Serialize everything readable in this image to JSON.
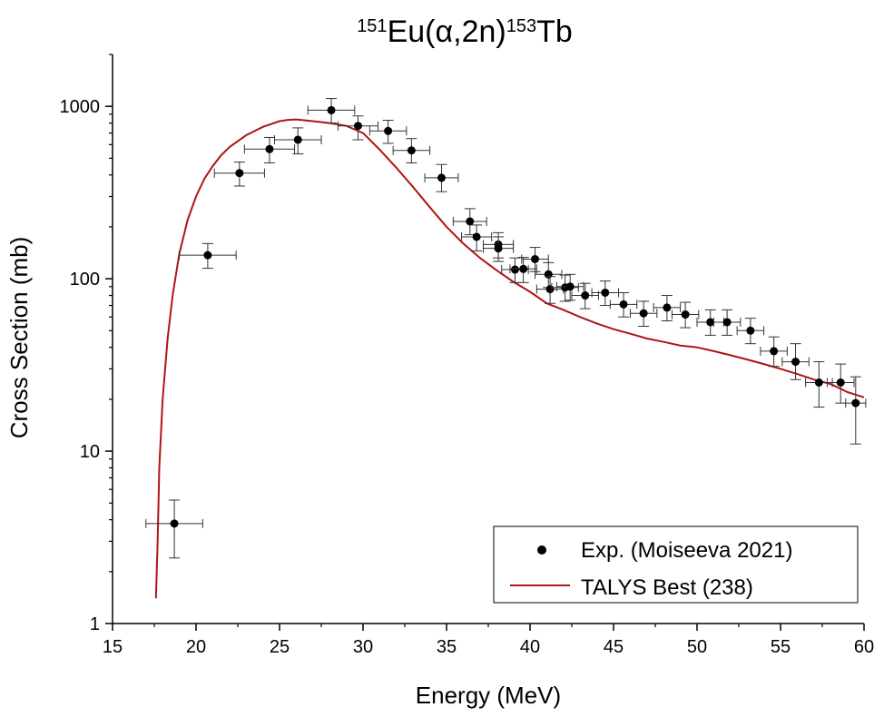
{
  "chart_data": {
    "type": "scatter",
    "title": {
      "parts": [
        {
          "text": "151",
          "sup": true
        },
        {
          "text": "Eu(",
          "sup": false
        },
        {
          "text": "α",
          "sup": false
        },
        {
          "text": ",2n)",
          "sup": false
        },
        {
          "text": "153",
          "sup": true
        },
        {
          "text": "Tb",
          "sup": false
        }
      ]
    },
    "xlabel": "Energy (MeV)",
    "ylabel": "Cross Section (mb)",
    "xlim": [
      15,
      60
    ],
    "ylim": [
      1,
      2000
    ],
    "yscale": "log",
    "x_ticks": [
      15,
      20,
      25,
      30,
      35,
      40,
      45,
      50,
      55,
      60
    ],
    "y_ticks": [
      {
        "value": 1,
        "label": "1"
      },
      {
        "value": 10,
        "label": "10"
      },
      {
        "value": 100,
        "label": "100"
      },
      {
        "value": 1000,
        "label": "1000"
      }
    ],
    "legend_position": "bottom-right",
    "series": [
      {
        "name": "Exp. (Moiseeva 2021)",
        "kind": "points_with_errorbars",
        "color": "#000000",
        "points": [
          {
            "x": 18.7,
            "y": 3.8,
            "xerr": 1.7,
            "ylo": 2.4,
            "yhi": 5.2
          },
          {
            "x": 20.7,
            "y": 137,
            "xerr": 1.7,
            "ylo": 115,
            "yhi": 160
          },
          {
            "x": 22.6,
            "y": 410,
            "xerr": 1.5,
            "ylo": 345,
            "yhi": 475
          },
          {
            "x": 24.4,
            "y": 565,
            "xerr": 1.5,
            "ylo": 470,
            "yhi": 660
          },
          {
            "x": 26.1,
            "y": 640,
            "xerr": 1.4,
            "ylo": 530,
            "yhi": 750
          },
          {
            "x": 28.1,
            "y": 950,
            "xerr": 1.4,
            "ylo": 800,
            "yhi": 1110
          },
          {
            "x": 29.7,
            "y": 770,
            "xerr": 1.2,
            "ylo": 640,
            "yhi": 880
          },
          {
            "x": 31.5,
            "y": 720,
            "xerr": 1.1,
            "ylo": 610,
            "yhi": 830
          },
          {
            "x": 32.9,
            "y": 555,
            "xerr": 1.1,
            "ylo": 470,
            "yhi": 650
          },
          {
            "x": 34.7,
            "y": 385,
            "xerr": 1.0,
            "ylo": 320,
            "yhi": 460
          },
          {
            "x": 36.4,
            "y": 215,
            "xerr": 1.0,
            "ylo": 180,
            "yhi": 255
          },
          {
            "x": 36.8,
            "y": 175,
            "xerr": 0.9,
            "ylo": 145,
            "yhi": 205
          },
          {
            "x": 38.1,
            "y": 158,
            "xerr": 0.9,
            "ylo": 132,
            "yhi": 185
          },
          {
            "x": 38.1,
            "y": 150,
            "xerr": 0.9,
            "ylo": 126,
            "yhi": 175
          },
          {
            "x": 39.1,
            "y": 113,
            "xerr": 0.8,
            "ylo": 95,
            "yhi": 132
          },
          {
            "x": 39.6,
            "y": 114,
            "xerr": 0.8,
            "ylo": 95,
            "yhi": 133
          },
          {
            "x": 40.3,
            "y": 130,
            "xerr": 0.8,
            "ylo": 110,
            "yhi": 152
          },
          {
            "x": 41.1,
            "y": 106,
            "xerr": 0.8,
            "ylo": 89,
            "yhi": 124
          },
          {
            "x": 41.2,
            "y": 87,
            "xerr": 0.8,
            "ylo": 72,
            "yhi": 103
          },
          {
            "x": 42.1,
            "y": 89,
            "xerr": 0.8,
            "ylo": 74,
            "yhi": 105
          },
          {
            "x": 42.4,
            "y": 90,
            "xerr": 0.8,
            "ylo": 75,
            "yhi": 106
          },
          {
            "x": 43.3,
            "y": 80,
            "xerr": 0.8,
            "ylo": 67,
            "yhi": 94
          },
          {
            "x": 44.5,
            "y": 83,
            "xerr": 0.8,
            "ylo": 70,
            "yhi": 97
          },
          {
            "x": 45.6,
            "y": 71,
            "xerr": 0.8,
            "ylo": 60,
            "yhi": 83
          },
          {
            "x": 46.8,
            "y": 63,
            "xerr": 0.8,
            "ylo": 53,
            "yhi": 74
          },
          {
            "x": 48.2,
            "y": 68,
            "xerr": 0.8,
            "ylo": 57,
            "yhi": 80
          },
          {
            "x": 49.3,
            "y": 62,
            "xerr": 0.8,
            "ylo": 52,
            "yhi": 73
          },
          {
            "x": 50.8,
            "y": 56,
            "xerr": 0.8,
            "ylo": 47,
            "yhi": 66
          },
          {
            "x": 51.8,
            "y": 56,
            "xerr": 0.8,
            "ylo": 47,
            "yhi": 66
          },
          {
            "x": 53.2,
            "y": 50,
            "xerr": 0.8,
            "ylo": 42,
            "yhi": 59
          },
          {
            "x": 54.6,
            "y": 38,
            "xerr": 0.8,
            "ylo": 31,
            "yhi": 46
          },
          {
            "x": 55.9,
            "y": 33,
            "xerr": 0.8,
            "ylo": 26,
            "yhi": 42
          },
          {
            "x": 57.3,
            "y": 25,
            "xerr": 0.8,
            "ylo": 18,
            "yhi": 33
          },
          {
            "x": 58.6,
            "y": 25,
            "xerr": 0.8,
            "ylo": 19,
            "yhi": 32
          },
          {
            "x": 59.5,
            "y": 19,
            "xerr": 0.6,
            "ylo": 11,
            "yhi": 27
          }
        ]
      },
      {
        "name": "TALYS Best (238)",
        "kind": "line",
        "color": "#b01414",
        "x": [
          17.6,
          17.7,
          17.8,
          18.0,
          18.3,
          18.6,
          19.0,
          19.5,
          20.0,
          20.5,
          21.0,
          21.5,
          22.0,
          23.0,
          24.0,
          25.0,
          25.5,
          26.0,
          27.0,
          28.0,
          29.0,
          30.0,
          31.0,
          32.0,
          33.0,
          34.0,
          35.0,
          36.0,
          37.0,
          38.0,
          39.0,
          40.0,
          41.0,
          42.0,
          43.0,
          44.0,
          45.0,
          46.0,
          47.0,
          48.0,
          49.0,
          50.0,
          51.0,
          52.0,
          53.0,
          54.0,
          55.0,
          56.0,
          57.0,
          58.0,
          59.0,
          60.0
        ],
        "y": [
          1.4,
          3.0,
          8.0,
          20,
          45,
          80,
          140,
          220,
          300,
          380,
          450,
          520,
          580,
          680,
          760,
          820,
          835,
          840,
          820,
          800,
          770,
          700,
          560,
          440,
          340,
          260,
          200,
          160,
          132,
          112,
          96,
          84,
          72,
          66,
          60,
          55,
          51,
          48,
          45,
          43,
          41,
          40,
          38,
          36,
          34,
          32,
          30,
          28,
          26,
          24.5,
          22,
          20.5
        ]
      }
    ]
  }
}
